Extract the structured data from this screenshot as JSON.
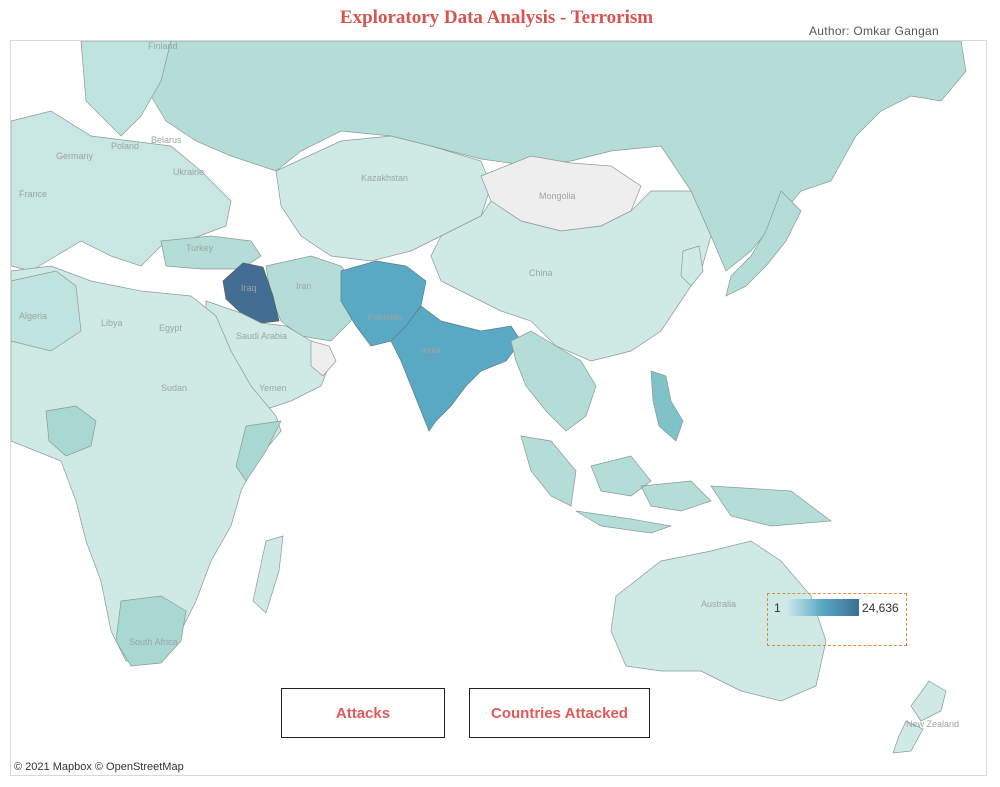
{
  "header": {
    "title": "Exploratory Data Analysis - Terrorism",
    "author": "Author: Omkar Gangan"
  },
  "map": {
    "attribution": "© 2021 Mapbox  © OpenStreetMap",
    "country_labels": [
      "Finland",
      "Poland",
      "Ukraine",
      "Belarus",
      "Germany",
      "France",
      "Turkey",
      "Kazakhstan",
      "Mongolia",
      "China",
      "Iran",
      "Iraq",
      "Pakistan",
      "India",
      "Saudi Arabia",
      "Yemen",
      "Egypt",
      "Libya",
      "Algeria",
      "Sudan",
      "South Africa",
      "Australia",
      "New Zealand"
    ],
    "color_scale": {
      "min_label": "1",
      "max_label": "24,636",
      "low_color": "#d3ecec",
      "mid_color": "#5aa9c4",
      "high_color": "#3d6e92",
      "no_data_color": "#eeeeee"
    },
    "fill_colors": {
      "ocean": "#ffffff",
      "very_low": "#cfeae5",
      "low": "#b5ddd8",
      "medium": "#7fc3c9",
      "high": "#5aa9c4",
      "highest": "#446d94"
    }
  },
  "buttons": {
    "attacks": "Attacks",
    "countries_attacked": "Countries Attacked",
    "accent_color": "#e05a5a"
  },
  "title_color": "#d9534f"
}
